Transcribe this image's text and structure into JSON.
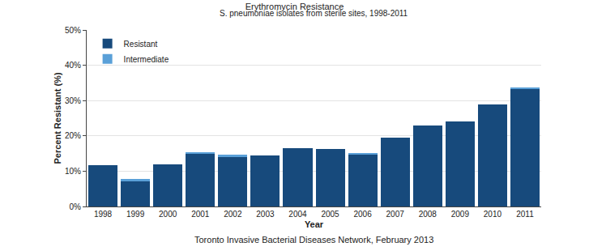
{
  "chart_data": {
    "type": "bar",
    "stacked": true,
    "title": "Erythromycin Resistance",
    "subtitle": "S. pneumoniae isolates from sterile sites, 1998-2011",
    "x_label": "Year",
    "y_label": "Percent Resistant (%)",
    "annotations": [
      "Toronto Invasive Bacterial Diseases Network, February 2013"
    ],
    "categories": [
      "1998",
      "1999",
      "2000",
      "2001",
      "2002",
      "2003",
      "2004",
      "2005",
      "2006",
      "2007",
      "2008",
      "2009",
      "2010",
      "2011"
    ],
    "series": [
      {
        "name": "Resistant",
        "color": "#174a7c",
        "values": [
          11.8,
          7.2,
          12.0,
          15.0,
          14.1,
          14.4,
          16.6,
          16.3,
          14.7,
          19.6,
          22.9,
          24.0,
          28.8,
          33.3
        ]
      },
      {
        "name": "Intermediate",
        "color": "#5aa0d8",
        "values": [
          0,
          0.6,
          0,
          0.3,
          0.6,
          0,
          0,
          0,
          0.3,
          0,
          0,
          0,
          0,
          0.4
        ]
      }
    ],
    "ylim": [
      0,
      50
    ],
    "yticks": [
      {
        "value": 0,
        "label": "0%"
      },
      {
        "value": 10,
        "label": "10%"
      },
      {
        "value": 20,
        "label": "20%"
      },
      {
        "value": 30,
        "label": "30%"
      },
      {
        "value": 40,
        "label": "40%"
      },
      {
        "value": 50,
        "label": "50%"
      }
    ],
    "grid": true,
    "legend": "top-left"
  }
}
